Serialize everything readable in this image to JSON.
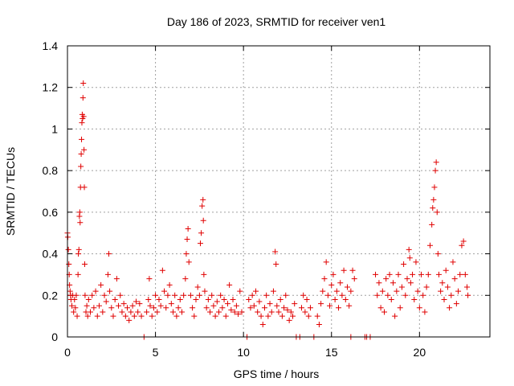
{
  "chart_data": {
    "type": "scatter",
    "title": "Day 186 of 2023, SRMTID for receiver ven1",
    "xlabel": "GPS time / hours",
    "ylabel": "SRMTID / TECUs",
    "xlim": [
      0,
      24
    ],
    "ylim": [
      0,
      1.4
    ],
    "xticks": [
      0,
      5,
      10,
      15,
      20
    ],
    "yticks": [
      0,
      0.2,
      0.4,
      0.6,
      0.8,
      1,
      1.2,
      1.4
    ],
    "xtick_labels": [
      "0",
      "5",
      "10",
      "15",
      "20"
    ],
    "ytick_labels": [
      "0",
      "0.2",
      "0.4",
      "0.6",
      "0.8",
      "1",
      "1.2",
      "1.4"
    ],
    "grid": true,
    "marker": "+",
    "color": "#e00000",
    "series": [
      {
        "name": "SRMTID",
        "points": [
          [
            0.0,
            0.5
          ],
          [
            0.02,
            0.48
          ],
          [
            0.05,
            0.42
          ],
          [
            0.08,
            0.35
          ],
          [
            0.1,
            0.3
          ],
          [
            0.12,
            0.25
          ],
          [
            0.15,
            0.22
          ],
          [
            0.18,
            0.2
          ],
          [
            0.2,
            0.18
          ],
          [
            0.25,
            0.15
          ],
          [
            0.3,
            0.2
          ],
          [
            0.35,
            0.12
          ],
          [
            0.4,
            0.18
          ],
          [
            0.45,
            0.14
          ],
          [
            0.5,
            0.2
          ],
          [
            0.55,
            0.1
          ],
          [
            0.6,
            0.3
          ],
          [
            0.62,
            0.4
          ],
          [
            0.65,
            0.42
          ],
          [
            0.68,
            0.58
          ],
          [
            0.7,
            0.6
          ],
          [
            0.72,
            0.55
          ],
          [
            0.74,
            0.72
          ],
          [
            0.76,
            0.82
          ],
          [
            0.78,
            0.88
          ],
          [
            0.8,
            0.95
          ],
          [
            0.82,
            1.03
          ],
          [
            0.84,
            1.07
          ],
          [
            0.86,
            1.05
          ],
          [
            0.88,
            1.15
          ],
          [
            0.9,
            1.22
          ],
          [
            0.92,
            1.06
          ],
          [
            0.94,
            0.9
          ],
          [
            0.96,
            0.72
          ],
          [
            0.98,
            0.35
          ],
          [
            1.0,
            0.2
          ],
          [
            1.05,
            0.12
          ],
          [
            1.1,
            0.15
          ],
          [
            1.15,
            0.1
          ],
          [
            1.2,
            0.18
          ],
          [
            1.3,
            0.12
          ],
          [
            1.4,
            0.2
          ],
          [
            1.5,
            0.14
          ],
          [
            1.6,
            0.22
          ],
          [
            1.7,
            0.1
          ],
          [
            1.8,
            0.15
          ],
          [
            1.9,
            0.25
          ],
          [
            2.0,
            0.12
          ],
          [
            2.1,
            0.2
          ],
          [
            2.2,
            0.17
          ],
          [
            2.3,
            0.3
          ],
          [
            2.35,
            0.4
          ],
          [
            2.4,
            0.22
          ],
          [
            2.5,
            0.14
          ],
          [
            2.6,
            0.1
          ],
          [
            2.7,
            0.18
          ],
          [
            2.8,
            0.28
          ],
          [
            2.9,
            0.15
          ],
          [
            3.0,
            0.2
          ],
          [
            3.1,
            0.12
          ],
          [
            3.2,
            0.16
          ],
          [
            3.3,
            0.1
          ],
          [
            3.4,
            0.14
          ],
          [
            3.5,
            0.08
          ],
          [
            3.6,
            0.12
          ],
          [
            3.7,
            0.15
          ],
          [
            3.8,
            0.1
          ],
          [
            3.9,
            0.17
          ],
          [
            4.0,
            0.12
          ],
          [
            4.1,
            0.16
          ],
          [
            4.2,
            0.1
          ],
          [
            4.35,
            0.0
          ],
          [
            4.5,
            0.12
          ],
          [
            4.6,
            0.18
          ],
          [
            4.65,
            0.28
          ],
          [
            4.7,
            0.15
          ],
          [
            4.8,
            0.1
          ],
          [
            4.9,
            0.14
          ],
          [
            5.0,
            0.2
          ],
          [
            5.1,
            0.12
          ],
          [
            5.2,
            0.18
          ],
          [
            5.3,
            0.15
          ],
          [
            5.4,
            0.32
          ],
          [
            5.5,
            0.22
          ],
          [
            5.6,
            0.14
          ],
          [
            5.7,
            0.2
          ],
          [
            5.8,
            0.25
          ],
          [
            5.9,
            0.16
          ],
          [
            6.0,
            0.12
          ],
          [
            6.1,
            0.2
          ],
          [
            6.2,
            0.1
          ],
          [
            6.3,
            0.14
          ],
          [
            6.4,
            0.18
          ],
          [
            6.5,
            0.12
          ],
          [
            6.6,
            0.2
          ],
          [
            6.7,
            0.28
          ],
          [
            6.75,
            0.4
          ],
          [
            6.8,
            0.47
          ],
          [
            6.85,
            0.52
          ],
          [
            6.9,
            0.36
          ],
          [
            7.0,
            0.2
          ],
          [
            7.1,
            0.14
          ],
          [
            7.2,
            0.1
          ],
          [
            7.3,
            0.18
          ],
          [
            7.4,
            0.24
          ],
          [
            7.5,
            0.2
          ],
          [
            7.55,
            0.45
          ],
          [
            7.6,
            0.5
          ],
          [
            7.65,
            0.63
          ],
          [
            7.7,
            0.66
          ],
          [
            7.72,
            0.56
          ],
          [
            7.75,
            0.3
          ],
          [
            7.8,
            0.22
          ],
          [
            7.9,
            0.14
          ],
          [
            8.0,
            0.18
          ],
          [
            8.1,
            0.12
          ],
          [
            8.2,
            0.2
          ],
          [
            8.3,
            0.15
          ],
          [
            8.4,
            0.1
          ],
          [
            8.5,
            0.17
          ],
          [
            8.6,
            0.12
          ],
          [
            8.7,
            0.2
          ],
          [
            8.8,
            0.14
          ],
          [
            8.9,
            0.18
          ],
          [
            9.0,
            0.1
          ],
          [
            9.1,
            0.16
          ],
          [
            9.2,
            0.25
          ],
          [
            9.3,
            0.13
          ],
          [
            9.4,
            0.18
          ],
          [
            9.5,
            0.12
          ],
          [
            9.6,
            0.15
          ],
          [
            9.7,
            0.11
          ],
          [
            9.8,
            0.22
          ],
          [
            9.9,
            0.12
          ],
          [
            10.2,
            0.0
          ],
          [
            10.3,
            0.18
          ],
          [
            10.4,
            0.14
          ],
          [
            10.5,
            0.2
          ],
          [
            10.6,
            0.15
          ],
          [
            10.7,
            0.22
          ],
          [
            10.8,
            0.12
          ],
          [
            10.9,
            0.17
          ],
          [
            11.0,
            0.1
          ],
          [
            11.1,
            0.06
          ],
          [
            11.2,
            0.14
          ],
          [
            11.3,
            0.2
          ],
          [
            11.4,
            0.1
          ],
          [
            11.5,
            0.16
          ],
          [
            11.6,
            0.12
          ],
          [
            11.7,
            0.22
          ],
          [
            11.8,
            0.41
          ],
          [
            11.85,
            0.35
          ],
          [
            11.9,
            0.15
          ],
          [
            12.0,
            0.12
          ],
          [
            12.1,
            0.18
          ],
          [
            12.2,
            0.1
          ],
          [
            12.3,
            0.14
          ],
          [
            12.4,
            0.2
          ],
          [
            12.5,
            0.13
          ],
          [
            12.6,
            0.08
          ],
          [
            12.7,
            0.12
          ],
          [
            12.8,
            0.1
          ],
          [
            12.9,
            0.16
          ],
          [
            13.0,
            0.0
          ],
          [
            13.2,
            0.0
          ],
          [
            13.3,
            0.14
          ],
          [
            13.4,
            0.2
          ],
          [
            13.5,
            0.12
          ],
          [
            13.6,
            0.18
          ],
          [
            13.7,
            0.1
          ],
          [
            13.8,
            0.14
          ],
          [
            14.0,
            0.0
          ],
          [
            14.2,
            0.1
          ],
          [
            14.3,
            0.06
          ],
          [
            14.4,
            0.16
          ],
          [
            14.5,
            0.22
          ],
          [
            14.6,
            0.28
          ],
          [
            14.7,
            0.36
          ],
          [
            14.8,
            0.2
          ],
          [
            14.9,
            0.15
          ],
          [
            15.0,
            0.25
          ],
          [
            15.1,
            0.3
          ],
          [
            15.2,
            0.18
          ],
          [
            15.3,
            0.22
          ],
          [
            15.4,
            0.14
          ],
          [
            15.5,
            0.26
          ],
          [
            15.6,
            0.2
          ],
          [
            15.7,
            0.32
          ],
          [
            15.8,
            0.18
          ],
          [
            15.9,
            0.24
          ],
          [
            16.0,
            0.15
          ],
          [
            16.1,
            0.22
          ],
          [
            16.2,
            0.32
          ],
          [
            16.3,
            0.28
          ],
          [
            16.1,
            0.0
          ],
          [
            16.9,
            0.0
          ],
          [
            17.0,
            0.0
          ],
          [
            17.2,
            0.0
          ],
          [
            17.5,
            0.3
          ],
          [
            17.6,
            0.2
          ],
          [
            17.7,
            0.26
          ],
          [
            17.8,
            0.14
          ],
          [
            17.9,
            0.22
          ],
          [
            18.0,
            0.12
          ],
          [
            18.1,
            0.28
          ],
          [
            18.2,
            0.2
          ],
          [
            18.3,
            0.3
          ],
          [
            18.4,
            0.18
          ],
          [
            18.5,
            0.26
          ],
          [
            18.6,
            0.1
          ],
          [
            18.7,
            0.22
          ],
          [
            18.8,
            0.3
          ],
          [
            18.9,
            0.14
          ],
          [
            19.0,
            0.24
          ],
          [
            19.1,
            0.35
          ],
          [
            19.2,
            0.2
          ],
          [
            19.3,
            0.28
          ],
          [
            19.4,
            0.42
          ],
          [
            19.45,
            0.38
          ],
          [
            19.5,
            0.26
          ],
          [
            19.6,
            0.3
          ],
          [
            19.7,
            0.18
          ],
          [
            19.8,
            0.36
          ],
          [
            19.9,
            0.22
          ],
          [
            20.0,
            0.14
          ],
          [
            20.1,
            0.3
          ],
          [
            20.2,
            0.2
          ],
          [
            20.3,
            0.12
          ],
          [
            20.4,
            0.24
          ],
          [
            20.5,
            0.3
          ],
          [
            20.6,
            0.44
          ],
          [
            20.7,
            0.54
          ],
          [
            20.75,
            0.62
          ],
          [
            20.8,
            0.66
          ],
          [
            20.85,
            0.72
          ],
          [
            20.9,
            0.8
          ],
          [
            20.95,
            0.84
          ],
          [
            21.0,
            0.6
          ],
          [
            21.05,
            0.4
          ],
          [
            21.1,
            0.3
          ],
          [
            21.2,
            0.22
          ],
          [
            21.3,
            0.26
          ],
          [
            21.4,
            0.18
          ],
          [
            21.5,
            0.32
          ],
          [
            21.6,
            0.24
          ],
          [
            21.7,
            0.14
          ],
          [
            21.8,
            0.2
          ],
          [
            21.9,
            0.36
          ],
          [
            22.0,
            0.28
          ],
          [
            22.1,
            0.16
          ],
          [
            22.2,
            0.22
          ],
          [
            22.3,
            0.3
          ],
          [
            22.4,
            0.44
          ],
          [
            22.5,
            0.46
          ],
          [
            22.6,
            0.3
          ],
          [
            22.7,
            0.24
          ],
          [
            22.75,
            0.2
          ]
        ]
      }
    ]
  }
}
